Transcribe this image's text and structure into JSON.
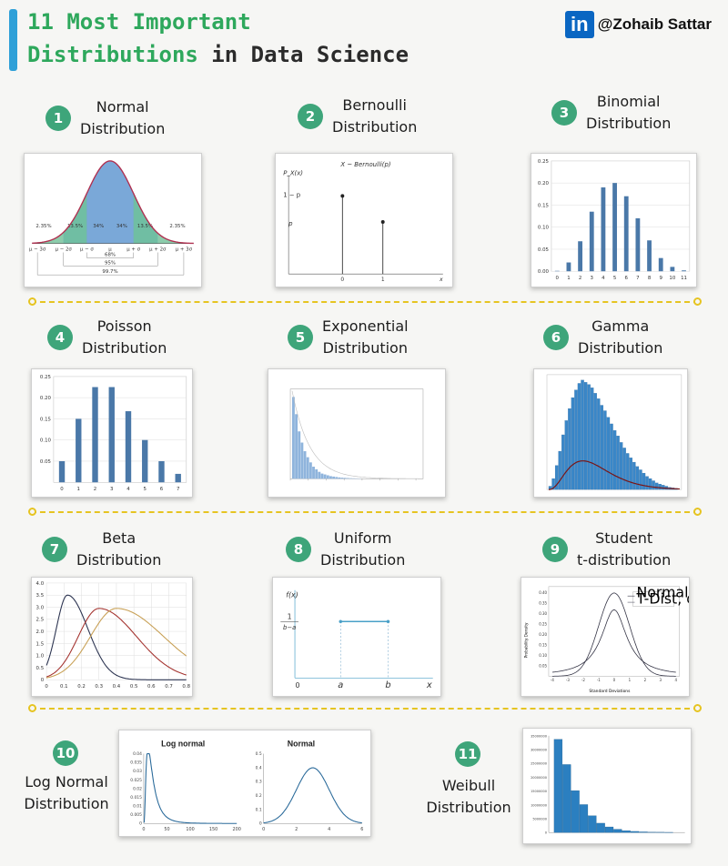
{
  "header": {
    "title_line1": "11 Most Important",
    "title_line2_green": "Distributions",
    "title_line2_dark": "in Data Science",
    "linkedin_logo_text": "in",
    "handle": "@Zohaib Sattar"
  },
  "colors": {
    "accent_green": "#2ea85c",
    "badge_green": "#3ea57a",
    "divider_yellow": "#e6c421",
    "bar_blue": "#4a78a8",
    "linkedin_blue": "#0a66c2"
  },
  "cards": [
    {
      "num": "1",
      "line1": "Normal",
      "line2": "Distribution",
      "labels": {
        "pcts": [
          "2.35%",
          "13.5%",
          "34%",
          "34%",
          "13.5%",
          "2.35%"
        ],
        "ranges": [
          "68%",
          "95%",
          "99.7%"
        ],
        "ticks": [
          "μ − 3σ",
          "μ − 2σ",
          "μ − σ",
          "μ",
          "μ + σ",
          "μ + 2σ",
          "μ + 3σ"
        ]
      }
    },
    {
      "num": "2",
      "line1": "Bernoulli",
      "line2": "Distribution",
      "labels": {
        "title": "X ~ Bernoulli(p)",
        "ylabel": "P_X(x)",
        "y1": "1 − p",
        "y2": "p",
        "x0": "0",
        "x1": "1",
        "xend": "x"
      }
    },
    {
      "num": "3",
      "line1": "Binomial",
      "line2": "Distribution"
    },
    {
      "num": "4",
      "line1": "Poisson",
      "line2": "Distribution"
    },
    {
      "num": "5",
      "line1": "Exponential",
      "line2": "Distribution"
    },
    {
      "num": "6",
      "line1": "Gamma",
      "line2": "Distribution"
    },
    {
      "num": "7",
      "line1": "Beta",
      "line2": "Distribution"
    },
    {
      "num": "8",
      "line1": "Uniform",
      "line2": "Distribution",
      "labels": {
        "fx": "f(x)",
        "one": "1",
        "bma": "b−a",
        "zero": "0",
        "a": "a",
        "b": "b",
        "x": "x"
      }
    },
    {
      "num": "9",
      "line1": "Student",
      "line2": "t-distribution",
      "labels": {
        "legend1": "Normal Dist.",
        "legend2": "T-Dist, df=1",
        "xlabel": "Standard Deviations",
        "ylabel": "Probability Density"
      }
    },
    {
      "num": "10",
      "line1": "Log Normal",
      "line2": "Distribution",
      "labels": {
        "left_title": "Log normal",
        "right_title": "Normal"
      }
    },
    {
      "num": "11",
      "line1": "Weibull",
      "line2": "Distribution"
    }
  ],
  "chart_data": [
    {
      "type": "area",
      "title": "Normal",
      "x_ticks": [
        "μ − 3σ",
        "μ − 2σ",
        "μ − σ",
        "μ",
        "μ + σ",
        "μ + 2σ",
        "μ + 3σ"
      ],
      "band_percents": [
        2.35,
        13.5,
        34,
        34,
        13.5,
        2.35
      ]
    },
    {
      "type": "bar",
      "title": "X ~ Bernoulli(p)",
      "categories": [
        "0",
        "1"
      ],
      "values": [
        0.6,
        0.4
      ]
    },
    {
      "type": "bar",
      "title": "Binomial",
      "categories": [
        "0",
        "1",
        "2",
        "3",
        "4",
        "5",
        "6",
        "7",
        "8",
        "9",
        "10",
        "11"
      ],
      "values": [
        0.001,
        0.02,
        0.068,
        0.135,
        0.19,
        0.2,
        0.17,
        0.12,
        0.07,
        0.03,
        0.01,
        0.002
      ],
      "ylim": [
        0,
        0.25
      ],
      "yticks": [
        "0.00",
        "0.05",
        "0.10",
        "0.15",
        "0.20",
        "0.25"
      ]
    },
    {
      "type": "bar",
      "title": "Poisson",
      "categories": [
        "0",
        "1",
        "2",
        "3",
        "4",
        "5",
        "6",
        "7"
      ],
      "values": [
        0.05,
        0.15,
        0.225,
        0.225,
        0.168,
        0.1,
        0.05,
        0.02
      ],
      "ylim": [
        0,
        0.25
      ],
      "yticks": [
        "0.05",
        "0.10",
        "0.15",
        "0.20",
        "0.25"
      ]
    },
    {
      "type": "bar",
      "title": "Exponential",
      "values": [
        0.95,
        0.75,
        0.55,
        0.42,
        0.32,
        0.25,
        0.19,
        0.14,
        0.11,
        0.08,
        0.06,
        0.05,
        0.04,
        0.03,
        0.025,
        0.02,
        0.015,
        0.012,
        0.01,
        0.008,
        0.006,
        0.005,
        0.004,
        0.003
      ]
    },
    {
      "type": "bar",
      "title": "Gamma",
      "values": [
        0.03,
        0.1,
        0.22,
        0.35,
        0.5,
        0.63,
        0.74,
        0.84,
        0.91,
        0.97,
        1.0,
        0.98,
        0.96,
        0.93,
        0.88,
        0.83,
        0.77,
        0.72,
        0.66,
        0.6,
        0.54,
        0.49,
        0.43,
        0.38,
        0.33,
        0.29,
        0.25,
        0.21,
        0.18,
        0.15,
        0.12,
        0.1,
        0.08,
        0.06,
        0.05,
        0.04,
        0.03,
        0.02,
        0.015,
        0.01
      ]
    },
    {
      "type": "line",
      "title": "Beta",
      "xlim": [
        0,
        0.8
      ],
      "ylim": [
        0,
        4.0
      ],
      "xticks": [
        "0",
        "0.1",
        "0.2",
        "0.3",
        "0.4",
        "0.5",
        "0.6",
        "0.7",
        "0.8"
      ],
      "yticks": [
        "0",
        "0.5",
        "1.0",
        "1.5",
        "2.0",
        "2.5",
        "3.0",
        "3.5",
        "4.0"
      ],
      "series": [
        {
          "color": "#2b3350",
          "peak_x": 0.12,
          "peak_y": 3.5
        },
        {
          "color": "#a4332f",
          "peak_x": 0.3,
          "peak_y": 2.95
        },
        {
          "color": "#c8a055",
          "peak_x": 0.4,
          "peak_y": 2.95
        }
      ]
    },
    {
      "type": "line",
      "title": "Uniform",
      "x_labels": [
        "0",
        "a",
        "b",
        "x"
      ],
      "y_label": "1/(b−a)"
    },
    {
      "type": "line",
      "title": "Student t",
      "xticks": [
        "-4",
        "-3",
        "-2",
        "-1",
        "0",
        "1",
        "2",
        "3",
        "4"
      ],
      "yticks": [
        "0.05",
        "0.10",
        "0.15",
        "0.20",
        "0.25",
        "0.30",
        "0.35",
        "0.40"
      ],
      "series": [
        {
          "name": "Normal Dist.",
          "peak": 0.4
        },
        {
          "name": "T-Dist, df=1",
          "peak": 0.32
        }
      ]
    },
    {
      "type": "line",
      "title": "Log normal",
      "xticks": [
        "0",
        "50",
        "100",
        "150",
        "200"
      ],
      "yticks": [
        "0",
        "0.005",
        "0.01",
        "0.015",
        "0.02",
        "0.025",
        "0.03",
        "0.035",
        "0.04"
      ]
    },
    {
      "type": "line",
      "title": "Normal",
      "xticks": [
        "0",
        "2",
        "4",
        "6"
      ],
      "yticks": [
        "0",
        "0.1",
        "0.2",
        "0.3",
        "0.4",
        "0.5"
      ]
    },
    {
      "type": "bar",
      "title": "Weibull",
      "values": [
        1.0,
        0.73,
        0.45,
        0.3,
        0.18,
        0.1,
        0.06,
        0.035,
        0.02,
        0.012,
        0.007,
        0.004,
        0.003,
        0.002
      ],
      "yticks": [
        "0",
        "5000000",
        "10000000",
        "15000000",
        "20000000",
        "25000000",
        "30000000",
        "35000000"
      ]
    }
  ]
}
